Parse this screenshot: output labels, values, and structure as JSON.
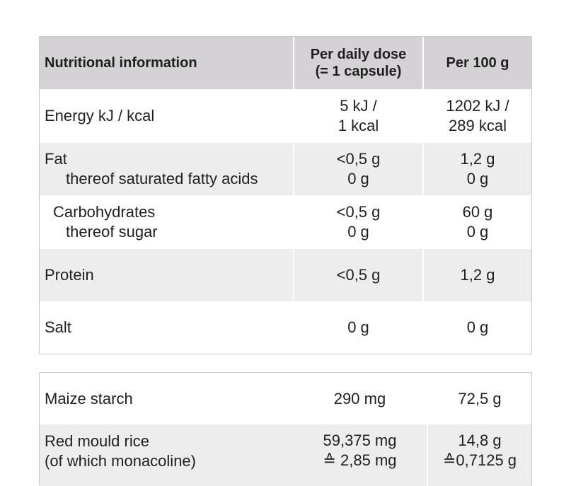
{
  "table1": {
    "headers": {
      "col1": "Nutritional information",
      "col2_line1": "Per daily dose",
      "col2_line2": "(= 1 capsule)",
      "col3": "Per 100 g"
    },
    "energy": {
      "label": "Energy kJ / kcal",
      "dose_line1": "5 kJ /",
      "dose_line2": "1 kcal",
      "per100_line1": "1202 kJ /",
      "per100_line2": "289 kcal"
    },
    "fat": {
      "label": "Fat",
      "sub_label": "thereof saturated fatty acids",
      "dose": "<0,5 g",
      "dose_sub": "0 g",
      "per100": "1,2 g",
      "per100_sub": "0 g"
    },
    "carbs": {
      "label": "Carbohydrates",
      "sub_label": "thereof sugar",
      "dose": "<0,5 g",
      "dose_sub": "0 g",
      "per100": "60 g",
      "per100_sub": "0 g"
    },
    "protein": {
      "label": "Protein",
      "dose": "<0,5 g",
      "per100": "1,2 g"
    },
    "salt": {
      "label": "Salt",
      "dose": "0 g",
      "per100": "0 g"
    }
  },
  "table2": {
    "maize": {
      "label": "Maize starch",
      "dose": "290 mg",
      "per100": "72,5 g"
    },
    "red_rice": {
      "label": "Red mould rice",
      "sub_label": "(of which monacoline)",
      "dose": "59,375 mg",
      "dose_sub": "≙ 2,85 mg",
      "per100": "14,8 g",
      "per100_sub": "≙0,7125 g"
    }
  },
  "colors": {
    "header_bg": "#d4d2d4",
    "shaded_bg": "#ededed",
    "border": "#c9c9c9"
  }
}
